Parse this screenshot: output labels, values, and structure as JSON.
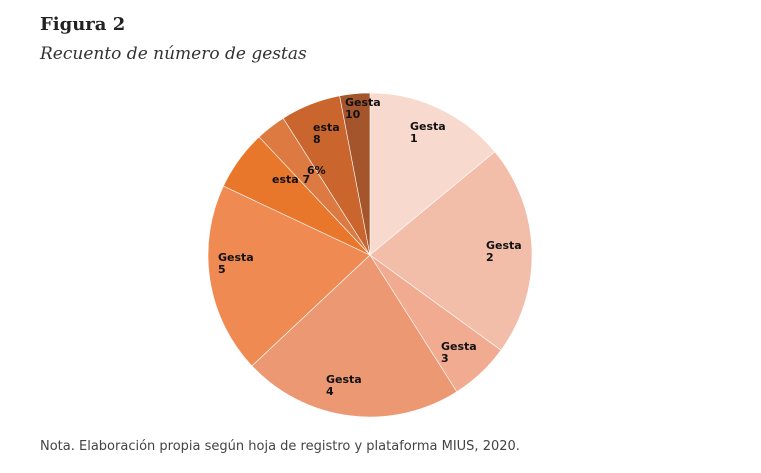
{
  "figure_label": "Figura 2",
  "figure_title": "Recuento de número de gestas",
  "note": "Nota. Elaboración propia según hoja de registro y plataforma MIUS, 2020.",
  "chart_data": {
    "type": "pie",
    "title": "",
    "start": "top, clockwise",
    "slices": [
      {
        "label": [
          "Gesta",
          "1"
        ],
        "value": 14,
        "color": "#f8d9cd"
      },
      {
        "label": [
          "Gesta",
          "2"
        ],
        "value": 21,
        "color": "#f2bea9"
      },
      {
        "label": [
          "Gesta",
          "3"
        ],
        "value": 6,
        "color": "#f1ab90"
      },
      {
        "label": [
          "Gesta",
          "4"
        ],
        "value": 22,
        "color": "#ec9872"
      },
      {
        "label": [
          "Gesta",
          "5"
        ],
        "value": 19,
        "color": "#ef8a52"
      },
      {
        "label": [
          "esta 7"
        ],
        "value": 6,
        "color": "#e8772c"
      },
      {
        "label": [
          "6%"
        ],
        "value": 3,
        "color": "#dc7a42"
      },
      {
        "label": [
          "esta",
          "8"
        ],
        "value": 6,
        "color": "#c9652d"
      },
      {
        "label": [
          "Gesta",
          "10"
        ],
        "value": 3,
        "color": "#a5552b"
      }
    ]
  }
}
